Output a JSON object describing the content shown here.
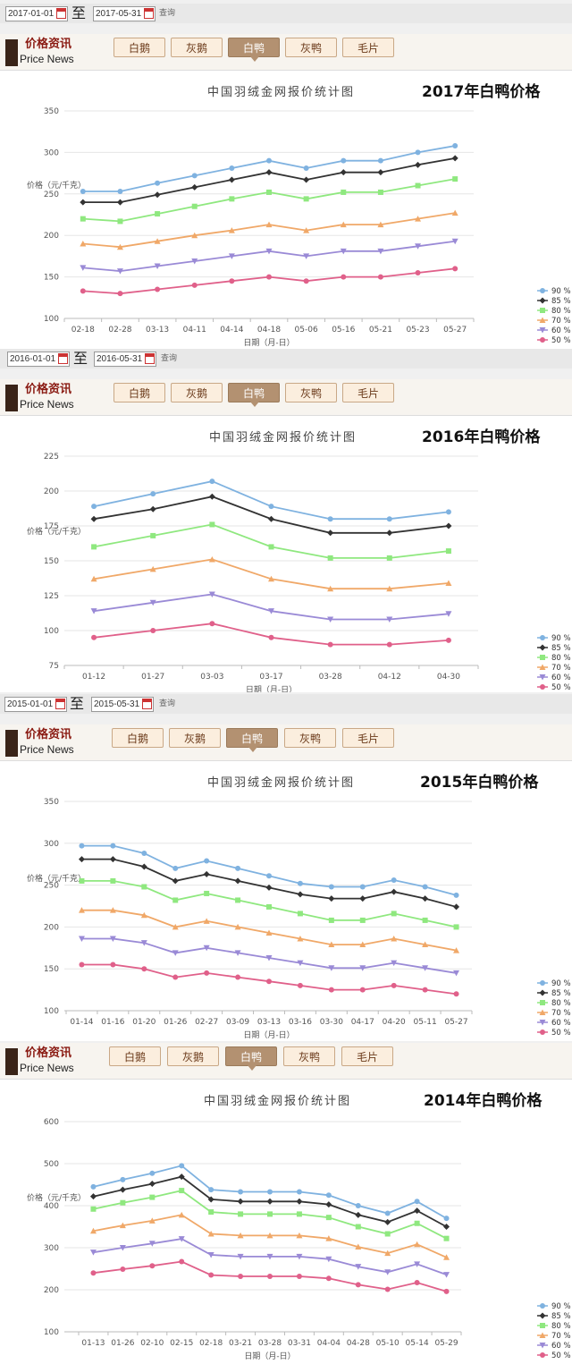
{
  "logo": {
    "cn": "价格资讯",
    "en": "Price News"
  },
  "tabs": [
    "白鹅",
    "灰鹅",
    "白鸭",
    "灰鸭",
    "毛片"
  ],
  "active_tab": 2,
  "query_label": "查询",
  "range_sep": "至",
  "chart_title": "中国羽绒金网报价统计图",
  "xlabel": "日期（月-日）",
  "ylabel": "价格（元/千克）",
  "legend": [
    "90 %",
    "85 %",
    "80 %",
    "70 %",
    "60 %",
    "50 %"
  ],
  "colors": [
    "#7fb2e0",
    "#333333",
    "#8fe87f",
    "#f0a868",
    "#9a8ad6",
    "#e0608a"
  ],
  "sections": [
    {
      "start_date": "2017-01-01",
      "end_date": "2017-05-31",
      "year_title": "2017年白鸭价格"
    },
    {
      "start_date": "2016-01-01",
      "end_date": "2016-05-31",
      "year_title": "2016年白鸭价格"
    },
    {
      "start_date": "2015-01-01",
      "end_date": "2015-05-31",
      "year_title": "2015年白鸭价格"
    },
    {
      "start_date": "",
      "end_date": "",
      "year_title": "2014年白鸭价格"
    }
  ],
  "chart_data": [
    {
      "type": "line",
      "title": "中国羽绒金网报价统计图",
      "xlabel": "日期（月-日）",
      "ylabel": "价格（元/千克）",
      "yticks": [
        100,
        150,
        200,
        250,
        300,
        350
      ],
      "ylim": [
        100,
        350
      ],
      "legend_position": "bottom-right",
      "categories": [
        "02-18",
        "02-28",
        "03-13",
        "04-11",
        "04-14",
        "04-18",
        "05-06",
        "05-16",
        "05-21",
        "05-23",
        "05-27"
      ],
      "series": [
        {
          "name": "90 %",
          "values": [
            253,
            253,
            263,
            272,
            281,
            290,
            281,
            290,
            290,
            300,
            308
          ]
        },
        {
          "name": "85 %",
          "values": [
            240,
            240,
            249,
            258,
            267,
            276,
            267,
            276,
            276,
            285,
            293
          ]
        },
        {
          "name": "80 %",
          "values": [
            220,
            217,
            226,
            235,
            244,
            252,
            244,
            252,
            252,
            260,
            268
          ]
        },
        {
          "name": "70 %",
          "values": [
            190,
            186,
            193,
            200,
            206,
            213,
            206,
            213,
            213,
            220,
            227
          ]
        },
        {
          "name": "60 %",
          "values": [
            161,
            157,
            163,
            169,
            175,
            181,
            175,
            181,
            181,
            187,
            193
          ]
        },
        {
          "name": "50 %",
          "values": [
            133,
            130,
            135,
            140,
            145,
            150,
            145,
            150,
            150,
            155,
            160
          ]
        }
      ]
    },
    {
      "type": "line",
      "title": "中国羽绒金网报价统计图",
      "xlabel": "日期（月-日）",
      "ylabel": "价格（元/千克）",
      "yticks": [
        75,
        100,
        125,
        150,
        175,
        200,
        225
      ],
      "ylim": [
        75,
        225
      ],
      "legend_position": "bottom-right",
      "categories": [
        "01-12",
        "01-27",
        "03-03",
        "03-17",
        "03-28",
        "04-12",
        "04-30"
      ],
      "series": [
        {
          "name": "90 %",
          "values": [
            189,
            198,
            207,
            189,
            180,
            180,
            185
          ]
        },
        {
          "name": "85 %",
          "values": [
            180,
            187,
            196,
            180,
            170,
            170,
            175
          ]
        },
        {
          "name": "80 %",
          "values": [
            160,
            168,
            176,
            160,
            152,
            152,
            157
          ]
        },
        {
          "name": "70 %",
          "values": [
            137,
            144,
            151,
            137,
            130,
            130,
            134
          ]
        },
        {
          "name": "60 %",
          "values": [
            114,
            120,
            126,
            114,
            108,
            108,
            112
          ]
        },
        {
          "name": "50 %",
          "values": [
            95,
            100,
            105,
            95,
            90,
            90,
            93
          ]
        }
      ]
    },
    {
      "type": "line",
      "title": "中国羽绒金网报价统计图",
      "xlabel": "日期（月-日）",
      "ylabel": "价格（元/千克）",
      "yticks": [
        100,
        150,
        200,
        250,
        300,
        350
      ],
      "ylim": [
        100,
        350
      ],
      "legend_position": "bottom-right",
      "categories": [
        "01-14",
        "01-16",
        "01-20",
        "01-26",
        "02-27",
        "03-09",
        "03-13",
        "03-16",
        "03-30",
        "04-17",
        "04-20",
        "05-11",
        "05-27"
      ],
      "series": [
        {
          "name": "90 %",
          "values": [
            297,
            297,
            288,
            270,
            279,
            270,
            261,
            252,
            248,
            248,
            256,
            248,
            238
          ]
        },
        {
          "name": "85 %",
          "values": [
            281,
            281,
            272,
            255,
            263,
            255,
            247,
            239,
            234,
            234,
            242,
            234,
            224
          ]
        },
        {
          "name": "80 %",
          "values": [
            255,
            255,
            248,
            232,
            240,
            232,
            224,
            216,
            208,
            208,
            216,
            208,
            200
          ]
        },
        {
          "name": "70 %",
          "values": [
            220,
            220,
            214,
            200,
            207,
            200,
            193,
            186,
            179,
            179,
            186,
            179,
            172
          ]
        },
        {
          "name": "60 %",
          "values": [
            186,
            186,
            181,
            169,
            175,
            169,
            163,
            157,
            151,
            151,
            157,
            151,
            145
          ]
        },
        {
          "name": "50 %",
          "values": [
            155,
            155,
            150,
            140,
            145,
            140,
            135,
            130,
            125,
            125,
            130,
            125,
            120
          ]
        }
      ]
    },
    {
      "type": "line",
      "title": "中国羽绒金网报价统计图",
      "xlabel": "日期（月-日）",
      "ylabel": "价格（元/千克）",
      "yticks": [
        100,
        200,
        300,
        400,
        500,
        600
      ],
      "ylim": [
        100,
        600
      ],
      "legend_position": "bottom-right",
      "categories": [
        "01-13",
        "01-26",
        "02-10",
        "02-15",
        "02-18",
        "03-21",
        "03-28",
        "03-31",
        "04-04",
        "04-28",
        "05-10",
        "05-14",
        "05-29"
      ],
      "series": [
        {
          "name": "90 %",
          "values": [
            445,
            462,
            477,
            495,
            438,
            433,
            433,
            433,
            425,
            400,
            382,
            410,
            370
          ]
        },
        {
          "name": "85 %",
          "values": [
            422,
            438,
            452,
            469,
            415,
            410,
            410,
            410,
            403,
            378,
            361,
            388,
            350
          ]
        },
        {
          "name": "80 %",
          "values": [
            392,
            407,
            420,
            436,
            385,
            380,
            380,
            380,
            372,
            350,
            333,
            358,
            322
          ]
        },
        {
          "name": "70 %",
          "values": [
            340,
            353,
            364,
            378,
            333,
            329,
            329,
            329,
            322,
            302,
            287,
            308,
            277
          ]
        },
        {
          "name": "60 %",
          "values": [
            289,
            300,
            310,
            321,
            283,
            279,
            279,
            279,
            273,
            255,
            242,
            261,
            236
          ]
        },
        {
          "name": "50 %",
          "values": [
            240,
            249,
            257,
            267,
            235,
            232,
            232,
            232,
            227,
            212,
            201,
            217,
            196
          ]
        }
      ]
    }
  ]
}
